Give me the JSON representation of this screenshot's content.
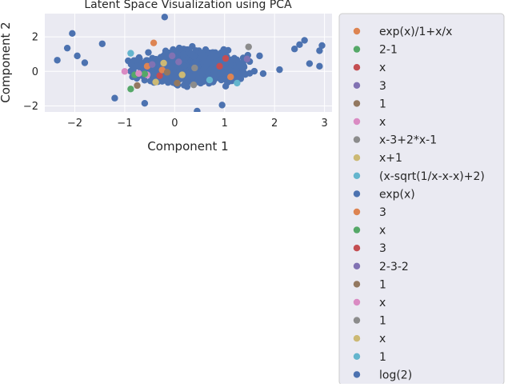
{
  "chart_data": {
    "type": "scatter",
    "title": "Latent Space Visualization using PCA",
    "xlabel": "Component 1",
    "ylabel": "Component 2",
    "xlim": [
      -2.6,
      3.15
    ],
    "ylim": [
      -2.35,
      3.35
    ],
    "xticks": [
      -2,
      -1,
      0,
      1,
      2,
      3
    ],
    "yticks": [
      -2,
      0,
      2
    ],
    "grid": true,
    "legend_position": "outside-right",
    "colors": {
      "background": "#eaeaf2",
      "grid": "#ffffff",
      "palette": [
        "#dd8452",
        "#55a868",
        "#c44e52",
        "#8172b3",
        "#937860",
        "#da8bc3",
        "#8c8c8c",
        "#ccb974",
        "#64b5cd",
        "#4c72b0"
      ]
    },
    "cloud": {
      "name": "log(2)",
      "color": "#4c72b0",
      "count": 1800,
      "center": [
        0.35,
        0.25
      ],
      "spread": [
        0.85,
        0.7
      ],
      "outliers": [
        [
          -2.35,
          0.65
        ],
        [
          -2.15,
          1.35
        ],
        [
          -2.05,
          2.2
        ],
        [
          -1.95,
          0.9
        ],
        [
          -1.8,
          0.5
        ],
        [
          -0.2,
          3.15
        ],
        [
          2.95,
          1.5
        ],
        [
          2.9,
          1.2
        ],
        [
          2.9,
          0.3
        ],
        [
          2.7,
          0.45
        ],
        [
          2.6,
          1.8
        ],
        [
          2.5,
          1.55
        ],
        [
          2.4,
          1.3
        ],
        [
          0.45,
          -2.3
        ],
        [
          0.95,
          -1.95
        ],
        [
          -0.6,
          -1.85
        ],
        [
          -1.2,
          -1.55
        ],
        [
          1.7,
          0.9
        ],
        [
          2.1,
          0.1
        ],
        [
          -1.45,
          1.6
        ]
      ]
    },
    "series": [
      {
        "name": "exp(x)/1+x/x",
        "color": "#dd8452",
        "points": [
          [
            -0.42,
            1.65
          ],
          [
            1.12,
            -0.32
          ],
          [
            -0.55,
            0.3
          ]
        ]
      },
      {
        "name": "2-1",
        "color": "#55a868",
        "points": [
          [
            -0.88,
            -1.02
          ],
          [
            -0.8,
            -0.2
          ]
        ]
      },
      {
        "name": "x",
        "color": "#c44e52",
        "points": [
          [
            1.02,
            0.75
          ],
          [
            -0.3,
            -0.25
          ]
        ]
      },
      {
        "name": "3",
        "color": "#8172b3",
        "points": [
          [
            1.45,
            0.72
          ],
          [
            0.08,
            0.55
          ],
          [
            -0.45,
            0.4
          ]
        ]
      },
      {
        "name": "1",
        "color": "#937860",
        "points": [
          [
            0.05,
            -0.68
          ],
          [
            -0.75,
            -0.82
          ]
        ]
      },
      {
        "name": "x",
        "color": "#da8bc3",
        "points": [
          [
            -1.0,
            0.0
          ],
          [
            -0.55,
            -0.2
          ]
        ]
      },
      {
        "name": "x-3+2*x-1",
        "color": "#8c8c8c",
        "points": [
          [
            1.48,
            1.42
          ],
          [
            0.38,
            -0.78
          ]
        ]
      },
      {
        "name": "x+1",
        "color": "#ccb974",
        "points": [
          [
            -0.22,
            0.48
          ],
          [
            -0.38,
            -0.62
          ]
        ]
      },
      {
        "name": "(x-sqrt(1/x-x-x)+2)",
        "color": "#64b5cd",
        "points": [
          [
            -0.88,
            1.05
          ],
          [
            1.25,
            -0.68
          ]
        ]
      },
      {
        "name": "exp(x)",
        "color": "#4c72b0",
        "points": [
          [
            -0.15,
            0.05
          ],
          [
            0.6,
            0.6
          ]
        ]
      },
      {
        "name": "3",
        "color": "#dd8452",
        "points": [
          [
            -0.25,
            0.08
          ]
        ]
      },
      {
        "name": "x",
        "color": "#55a868",
        "points": [
          [
            -0.6,
            -0.15
          ]
        ]
      },
      {
        "name": "3",
        "color": "#c44e52",
        "points": [
          [
            0.9,
            0.3
          ]
        ]
      },
      {
        "name": "2-3-2",
        "color": "#8172b3",
        "points": [
          [
            -0.05,
            0.9
          ]
        ]
      },
      {
        "name": "1",
        "color": "#937860",
        "points": [
          [
            -0.15,
            -0.05
          ]
        ]
      },
      {
        "name": "x",
        "color": "#da8bc3",
        "points": [
          [
            -0.72,
            -0.12
          ]
        ]
      },
      {
        "name": "1",
        "color": "#8c8c8c",
        "points": [
          [
            0.4,
            0.2
          ]
        ]
      },
      {
        "name": "x",
        "color": "#ccb974",
        "points": [
          [
            0.15,
            -0.2
          ]
        ]
      },
      {
        "name": "1",
        "color": "#64b5cd",
        "points": [
          [
            0.7,
            -0.5
          ]
        ]
      }
    ]
  }
}
